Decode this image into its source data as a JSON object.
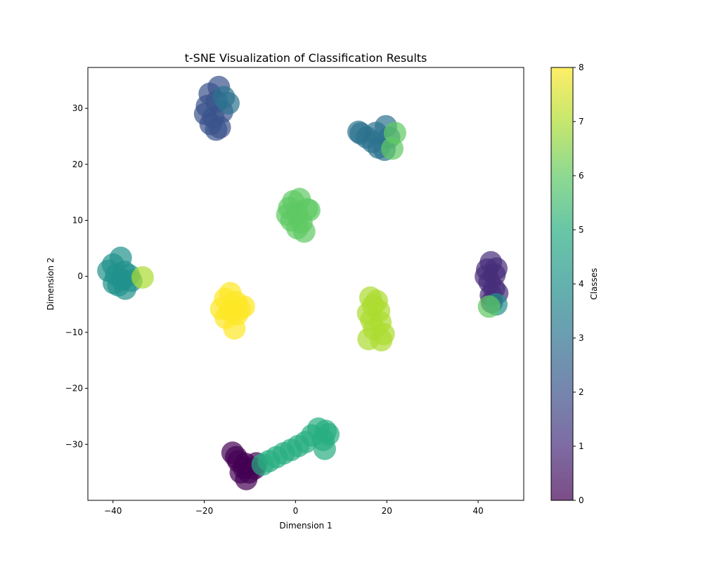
{
  "chart_data": {
    "type": "scatter",
    "title": "t-SNE Visualization of Classification Results",
    "xlabel": "Dimension 1",
    "ylabel": "Dimension 2",
    "xlim": [
      -45.5,
      50
    ],
    "ylim": [
      -40,
      37.3
    ],
    "xticks": [
      -40,
      -20,
      0,
      20,
      40
    ],
    "yticks": [
      -30,
      -20,
      -10,
      0,
      10,
      20,
      30
    ],
    "xtick_labels": [
      "−40",
      "−20",
      "0",
      "20",
      "40"
    ],
    "ytick_labels": [
      "−30",
      "−20",
      "−10",
      "0",
      "10",
      "20",
      "30"
    ],
    "grid": false,
    "colorbar": {
      "label": "Classes",
      "range": [
        0,
        8
      ],
      "ticks": [
        0,
        1,
        2,
        3,
        4,
        5,
        6,
        7,
        8
      ],
      "tick_labels": [
        "0",
        "1",
        "2",
        "3",
        "4",
        "5",
        "6",
        "7",
        "8"
      ]
    },
    "colors": {
      "0": "#440154",
      "1": "#472D7B",
      "2": "#3B528B",
      "3": "#2C728E",
      "4": "#21918C",
      "5": "#28AE80",
      "6": "#5EC962",
      "7": "#ADDC30",
      "8": "#FDE725"
    },
    "points": [
      {
        "x": -13.8,
        "y": -31.5,
        "c": 0
      },
      {
        "x": -12.5,
        "y": -33.0,
        "c": 0
      },
      {
        "x": -11.3,
        "y": -34.2,
        "c": 0
      },
      {
        "x": -10.2,
        "y": -35.0,
        "c": 0
      },
      {
        "x": -9.0,
        "y": -34.3,
        "c": 0
      },
      {
        "x": -12.0,
        "y": -35.0,
        "c": 0
      },
      {
        "x": -10.8,
        "y": -36.2,
        "c": 0
      },
      {
        "x": -8.6,
        "y": -33.4,
        "c": 0
      },
      {
        "x": -13.0,
        "y": -32.3,
        "c": 0
      },
      {
        "x": -11.0,
        "y": -33.5,
        "c": 0
      },
      {
        "x": 42.8,
        "y": 2.5,
        "c": 1
      },
      {
        "x": 42.0,
        "y": 1.2,
        "c": 1
      },
      {
        "x": 43.6,
        "y": 0.3,
        "c": 1
      },
      {
        "x": 42.5,
        "y": -1.0,
        "c": 1
      },
      {
        "x": 43.5,
        "y": -2.2,
        "c": 1
      },
      {
        "x": 42.8,
        "y": -3.4,
        "c": 1
      },
      {
        "x": 44.2,
        "y": -3.0,
        "c": 1
      },
      {
        "x": 41.7,
        "y": 0.0,
        "c": 1
      },
      {
        "x": 43.0,
        "y": -4.6,
        "c": 1
      },
      {
        "x": 44.0,
        "y": 1.4,
        "c": 1
      },
      {
        "x": -16.8,
        "y": 33.8,
        "c": 2
      },
      {
        "x": -18.8,
        "y": 32.6,
        "c": 2
      },
      {
        "x": -19.4,
        "y": 30.4,
        "c": 2
      },
      {
        "x": -17.3,
        "y": 31.2,
        "c": 2
      },
      {
        "x": -19.8,
        "y": 29.0,
        "c": 2
      },
      {
        "x": -18.0,
        "y": 28.4,
        "c": 2
      },
      {
        "x": -18.6,
        "y": 27.2,
        "c": 2
      },
      {
        "x": -16.6,
        "y": 26.6,
        "c": 2
      },
      {
        "x": -17.4,
        "y": 26.2,
        "c": 2
      },
      {
        "x": -16.1,
        "y": 29.4,
        "c": 2
      },
      {
        "x": 14.3,
        "y": 25.5,
        "c": 3
      },
      {
        "x": 15.6,
        "y": 24.8,
        "c": 3
      },
      {
        "x": 16.9,
        "y": 24.0,
        "c": 3
      },
      {
        "x": 18.2,
        "y": 23.0,
        "c": 3
      },
      {
        "x": 19.5,
        "y": 22.6,
        "c": 3
      },
      {
        "x": 19.8,
        "y": 26.8,
        "c": 3
      },
      {
        "x": 20.5,
        "y": 24.8,
        "c": 3
      },
      {
        "x": 17.6,
        "y": 25.6,
        "c": 3
      },
      {
        "x": 13.8,
        "y": 25.8,
        "c": 3
      },
      {
        "x": -15.7,
        "y": 32.0,
        "c": 3
      },
      {
        "x": -14.7,
        "y": 30.9,
        "c": 3
      },
      {
        "x": -38.3,
        "y": 3.3,
        "c": 4
      },
      {
        "x": -40.0,
        "y": 2.1,
        "c": 4
      },
      {
        "x": -39.3,
        "y": 0.3,
        "c": 4
      },
      {
        "x": -37.5,
        "y": 0.8,
        "c": 4
      },
      {
        "x": -38.0,
        "y": -0.6,
        "c": 4
      },
      {
        "x": -38.8,
        "y": -1.6,
        "c": 4
      },
      {
        "x": -37.3,
        "y": -2.2,
        "c": 4
      },
      {
        "x": -36.0,
        "y": -0.8,
        "c": 4
      },
      {
        "x": -36.5,
        "y": 0.2,
        "c": 4
      },
      {
        "x": -41.0,
        "y": 1.0,
        "c": 4
      },
      {
        "x": -39.8,
        "y": -1.2,
        "c": 4
      },
      {
        "x": 44.0,
        "y": -5.0,
        "c": 4
      },
      {
        "x": 5.0,
        "y": -27.2,
        "c": 5
      },
      {
        "x": 6.6,
        "y": -27.6,
        "c": 5
      },
      {
        "x": 6.1,
        "y": -29.2,
        "c": 5
      },
      {
        "x": 6.4,
        "y": -30.8,
        "c": 5
      },
      {
        "x": 3.6,
        "y": -28.4,
        "c": 5
      },
      {
        "x": 2.2,
        "y": -29.6,
        "c": 5
      },
      {
        "x": 0.6,
        "y": -30.3,
        "c": 5
      },
      {
        "x": -1.0,
        "y": -31.0,
        "c": 5
      },
      {
        "x": -2.6,
        "y": -31.6,
        "c": 5
      },
      {
        "x": -4.2,
        "y": -32.3,
        "c": 5
      },
      {
        "x": -5.8,
        "y": -33.0,
        "c": 5
      },
      {
        "x": -7.2,
        "y": -33.6,
        "c": 5
      },
      {
        "x": 7.2,
        "y": -28.2,
        "c": 5
      },
      {
        "x": -0.5,
        "y": 13.4,
        "c": 6
      },
      {
        "x": 0.9,
        "y": 13.8,
        "c": 6
      },
      {
        "x": -1.4,
        "y": 12.2,
        "c": 6
      },
      {
        "x": 0.3,
        "y": 11.2,
        "c": 6
      },
      {
        "x": 2.5,
        "y": 12.0,
        "c": 6
      },
      {
        "x": -0.9,
        "y": 10.0,
        "c": 6
      },
      {
        "x": 1.3,
        "y": 9.6,
        "c": 6
      },
      {
        "x": 0.4,
        "y": 8.6,
        "c": 6
      },
      {
        "x": 1.9,
        "y": 8.0,
        "c": 6
      },
      {
        "x": -1.8,
        "y": 11.0,
        "c": 6
      },
      {
        "x": 3.0,
        "y": 11.8,
        "c": 6
      },
      {
        "x": 21.8,
        "y": 25.6,
        "c": 6
      },
      {
        "x": 21.2,
        "y": 22.8,
        "c": 6
      },
      {
        "x": 42.4,
        "y": -5.4,
        "c": 6
      },
      {
        "x": 16.4,
        "y": -3.8,
        "c": 7
      },
      {
        "x": 17.0,
        "y": -5.2,
        "c": 7
      },
      {
        "x": 15.9,
        "y": -6.6,
        "c": 7
      },
      {
        "x": 18.3,
        "y": -6.2,
        "c": 7
      },
      {
        "x": 16.6,
        "y": -7.8,
        "c": 7
      },
      {
        "x": 18.6,
        "y": -8.2,
        "c": 7
      },
      {
        "x": 17.2,
        "y": -9.4,
        "c": 7
      },
      {
        "x": 19.3,
        "y": -10.3,
        "c": 7
      },
      {
        "x": 16.0,
        "y": -11.2,
        "c": 7
      },
      {
        "x": 18.8,
        "y": -11.4,
        "c": 7
      },
      {
        "x": 17.8,
        "y": -4.4,
        "c": 7
      },
      {
        "x": -33.5,
        "y": -0.2,
        "c": 7
      },
      {
        "x": -14.3,
        "y": -3.0,
        "c": 8
      },
      {
        "x": -15.4,
        "y": -4.0,
        "c": 8
      },
      {
        "x": -13.0,
        "y": -4.6,
        "c": 8
      },
      {
        "x": -11.3,
        "y": -5.4,
        "c": 8
      },
      {
        "x": -16.3,
        "y": -5.8,
        "c": 8
      },
      {
        "x": -14.4,
        "y": -6.2,
        "c": 8
      },
      {
        "x": -12.8,
        "y": -6.8,
        "c": 8
      },
      {
        "x": -15.3,
        "y": -7.4,
        "c": 8
      },
      {
        "x": -13.4,
        "y": -9.3,
        "c": 8
      },
      {
        "x": -12.2,
        "y": -5.8,
        "c": 8
      }
    ]
  }
}
